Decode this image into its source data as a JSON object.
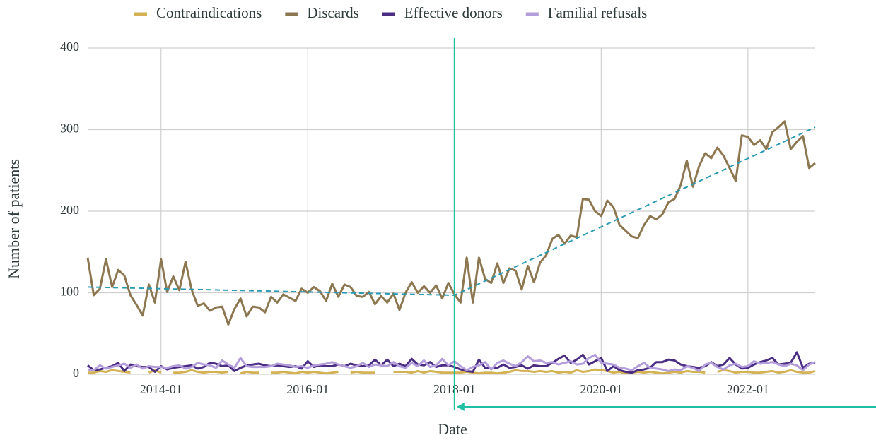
{
  "chart_data": {
    "type": "line",
    "x_label": "Date",
    "y_label": "Number of patients",
    "x": [
      "2013-01",
      "2013-02",
      "2013-03",
      "2013-04",
      "2013-05",
      "2013-06",
      "2013-07",
      "2013-08",
      "2013-09",
      "2013-10",
      "2013-11",
      "2013-12",
      "2014-01",
      "2014-02",
      "2014-03",
      "2014-04",
      "2014-05",
      "2014-06",
      "2014-07",
      "2014-08",
      "2014-09",
      "2014-10",
      "2014-11",
      "2014-12",
      "2015-01",
      "2015-02",
      "2015-03",
      "2015-04",
      "2015-05",
      "2015-06",
      "2015-07",
      "2015-08",
      "2015-09",
      "2015-10",
      "2015-11",
      "2015-12",
      "2016-01",
      "2016-02",
      "2016-03",
      "2016-04",
      "2016-05",
      "2016-06",
      "2016-07",
      "2016-08",
      "2016-09",
      "2016-10",
      "2016-11",
      "2016-12",
      "2017-01",
      "2017-02",
      "2017-03",
      "2017-04",
      "2017-05",
      "2017-06",
      "2017-07",
      "2017-08",
      "2017-09",
      "2017-10",
      "2017-11",
      "2017-12",
      "2018-01",
      "2018-02",
      "2018-03",
      "2018-04",
      "2018-05",
      "2018-06",
      "2018-07",
      "2018-08",
      "2018-09",
      "2018-10",
      "2018-11",
      "2018-12",
      "2019-01",
      "2019-02",
      "2019-03",
      "2019-04",
      "2019-05",
      "2019-06",
      "2019-07",
      "2019-08",
      "2019-09",
      "2019-10",
      "2019-11",
      "2019-12",
      "2020-01",
      "2020-02",
      "2020-03",
      "2020-04",
      "2020-05",
      "2020-06",
      "2020-07",
      "2020-08",
      "2020-09",
      "2020-10",
      "2020-11",
      "2020-12",
      "2021-01",
      "2021-02",
      "2021-03",
      "2021-04",
      "2021-05",
      "2021-06",
      "2021-07",
      "2021-08",
      "2021-09",
      "2021-10",
      "2021-11",
      "2021-12",
      "2022-01",
      "2022-02",
      "2022-03",
      "2022-04",
      "2022-05",
      "2022-06",
      "2022-07",
      "2022-08",
      "2022-09",
      "2022-10",
      "2022-11",
      "2022-12"
    ],
    "series": [
      {
        "name": "Contraindications",
        "color": "#d4b254",
        "values": [
          2,
          2,
          4,
          3,
          5,
          4,
          3,
          2,
          null,
          null,
          2,
          5,
          2,
          null,
          2,
          2,
          3,
          5,
          3,
          2,
          3,
          3,
          2,
          3,
          null,
          1,
          3,
          2,
          2,
          null,
          2,
          2,
          3,
          2,
          1,
          3,
          2,
          3,
          2,
          1,
          2,
          3,
          null,
          2,
          3,
          2,
          2,
          2,
          null,
          null,
          3,
          3,
          3,
          2,
          4,
          2,
          4,
          3,
          2,
          2,
          2,
          2,
          3,
          2,
          1,
          2,
          2,
          1,
          2,
          3,
          5,
          4,
          4,
          3,
          4,
          3,
          4,
          2,
          3,
          2,
          5,
          3,
          4,
          6,
          5,
          4,
          2,
          3,
          1,
          2,
          3,
          2,
          3,
          2,
          1,
          2,
          3,
          2,
          4,
          3,
          3,
          2,
          null,
          3,
          5,
          4,
          2,
          3,
          3,
          2,
          2,
          3,
          4,
          2,
          3,
          5,
          3,
          2,
          2,
          4
        ]
      },
      {
        "name": "Discards",
        "color": "#8c7750",
        "values": [
          143,
          97,
          105,
          141,
          107,
          128,
          121,
          97,
          85,
          72,
          110,
          88,
          141,
          101,
          120,
          103,
          138,
          104,
          84,
          87,
          78,
          82,
          83,
          61,
          80,
          93,
          71,
          83,
          82,
          76,
          95,
          88,
          98,
          94,
          90,
          105,
          100,
          107,
          102,
          90,
          111,
          95,
          110,
          107,
          96,
          95,
          101,
          86,
          96,
          88,
          99,
          79,
          100,
          113,
          100,
          108,
          100,
          109,
          93,
          112,
          98,
          88,
          143,
          88,
          143,
          117,
          112,
          136,
          112,
          130,
          127,
          104,
          133,
          113,
          137,
          146,
          166,
          171,
          160,
          170,
          168,
          215,
          214,
          200,
          194,
          213,
          205,
          183,
          176,
          169,
          167,
          183,
          194,
          190,
          196,
          211,
          215,
          232,
          262,
          230,
          255,
          271,
          265,
          278,
          268,
          253,
          237,
          293,
          291,
          281,
          287,
          276,
          297,
          303,
          310,
          276,
          285,
          292,
          253,
          259
        ]
      },
      {
        "name": "Effective donors",
        "color": "#4b2e83",
        "values": [
          11,
          5,
          6,
          8,
          10,
          14,
          4,
          12,
          10,
          9,
          9,
          3,
          10,
          6,
          8,
          9,
          10,
          11,
          7,
          9,
          14,
          13,
          10,
          11,
          4,
          8,
          11,
          12,
          13,
          11,
          10,
          11,
          10,
          9,
          10,
          7,
          16,
          9,
          11,
          10,
          10,
          12,
          10,
          13,
          11,
          10,
          11,
          18,
          11,
          18,
          10,
          13,
          10,
          19,
          12,
          11,
          15,
          9,
          11,
          11,
          9,
          6,
          4,
          3,
          18,
          8,
          7,
          8,
          12,
          8,
          9,
          11,
          7,
          11,
          10,
          10,
          14,
          19,
          23,
          14,
          18,
          24,
          12,
          16,
          20,
          4,
          10,
          5,
          3,
          2,
          5,
          6,
          8,
          15,
          15,
          18,
          17,
          12,
          10,
          9,
          8,
          10,
          15,
          10,
          12,
          20,
          12,
          7,
          8,
          12,
          15,
          17,
          20,
          12,
          13,
          14,
          27,
          8,
          13,
          14
        ]
      },
      {
        "name": "Familial refusals",
        "color": "#b39ddb",
        "values": [
          6,
          5,
          11,
          7,
          9,
          11,
          13,
          8,
          12,
          7,
          10,
          9,
          9,
          8,
          10,
          11,
          7,
          9,
          14,
          12,
          11,
          8,
          17,
          12,
          8,
          20,
          10,
          9,
          9,
          9,
          10,
          13,
          12,
          11,
          9,
          10,
          8,
          11,
          12,
          13,
          15,
          12,
          10,
          8,
          10,
          14,
          9,
          12,
          11,
          10,
          15,
          10,
          8,
          14,
          10,
          17,
          9,
          11,
          19,
          11,
          16,
          10,
          5,
          9,
          11,
          15,
          6,
          14,
          17,
          13,
          10,
          15,
          22,
          16,
          17,
          14,
          15,
          12,
          14,
          16,
          12,
          13,
          20,
          24,
          14,
          13,
          12,
          8,
          7,
          5,
          10,
          14,
          8,
          7,
          6,
          4,
          6,
          5,
          10,
          8,
          4,
          12,
          14,
          9,
          6,
          11,
          13,
          9,
          10,
          16,
          13,
          14,
          15,
          12,
          10,
          13,
          11,
          5,
          12,
          15
        ]
      }
    ],
    "trend": {
      "color": "#2a9bb5",
      "x": [
        "2013-01",
        "2018-01",
        "2022-12"
      ],
      "values": [
        107,
        97,
        303
      ]
    },
    "marker_x": "2018-01",
    "marker_color": "#1fbfa3",
    "xlim": [
      "2013-01",
      "2022-12"
    ],
    "xticks": [
      "2014-01",
      "2016-01",
      "2018-01",
      "2020-01",
      "2022-01"
    ],
    "ylim": [
      0,
      400
    ],
    "yticks": [
      0,
      100,
      200,
      300,
      400
    ],
    "grid": true,
    "legend": "top"
  }
}
